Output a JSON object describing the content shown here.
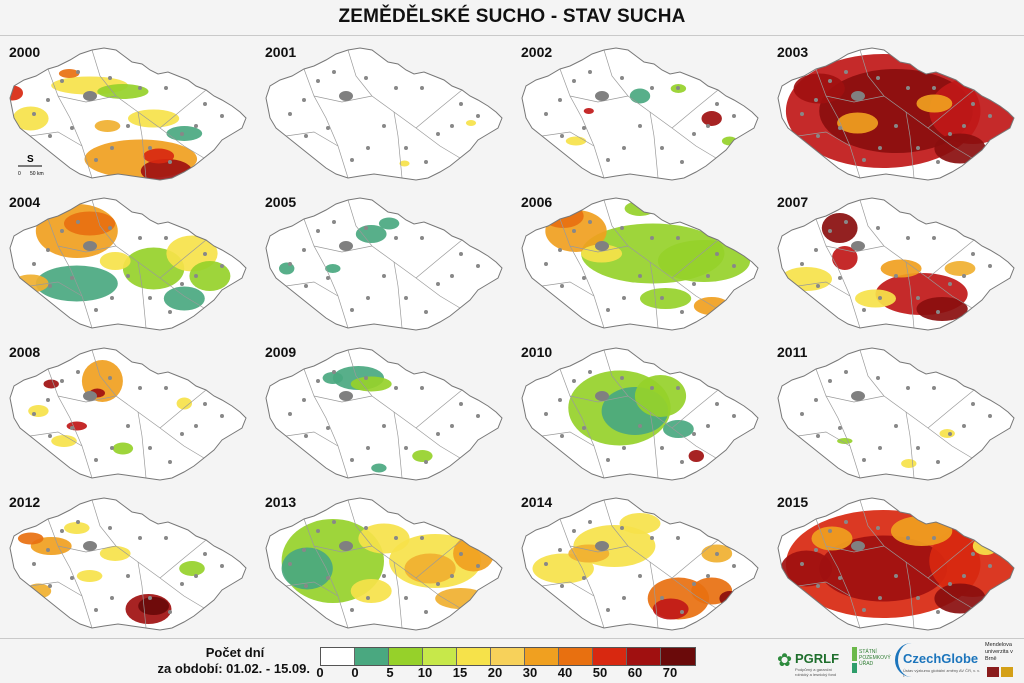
{
  "title": "ZEMĚDĚLSKÉ SUCHO - STAV SUCHA",
  "scale_bar": {
    "north": "S",
    "zero": "0",
    "distance": "50 km"
  },
  "maps": [
    {
      "year": "2000",
      "blobs": [
        [
          0.55,
          0.82,
          0.22,
          0.13,
          "#f0a020"
        ],
        [
          0.65,
          0.9,
          0.1,
          0.08,
          "#a01010"
        ],
        [
          0.62,
          0.8,
          0.06,
          0.05,
          "#d82810"
        ],
        [
          0.35,
          0.33,
          0.15,
          0.06,
          "#f6e24a"
        ],
        [
          0.48,
          0.37,
          0.1,
          0.05,
          "#96d12a"
        ],
        [
          0.6,
          0.55,
          0.1,
          0.06,
          "#f6e24a"
        ],
        [
          0.12,
          0.55,
          0.07,
          0.08,
          "#f6e24a"
        ],
        [
          0.05,
          0.38,
          0.04,
          0.05,
          "#d82810"
        ],
        [
          0.27,
          0.25,
          0.04,
          0.03,
          "#e87010"
        ],
        [
          0.72,
          0.65,
          0.07,
          0.05,
          "#4aa880"
        ],
        [
          0.42,
          0.6,
          0.05,
          0.04,
          "#f0b030"
        ]
      ]
    },
    {
      "year": "2001",
      "blobs": [
        [
          0.58,
          0.85,
          0.02,
          0.02,
          "#f6e24a"
        ],
        [
          0.84,
          0.58,
          0.02,
          0.02,
          "#f6e24a"
        ]
      ]
    },
    {
      "year": "2002",
      "blobs": [
        [
          0.5,
          0.4,
          0.04,
          0.05,
          "#4aa880"
        ],
        [
          0.78,
          0.55,
          0.04,
          0.05,
          "#a01010"
        ],
        [
          0.25,
          0.7,
          0.04,
          0.03,
          "#f6e24a"
        ],
        [
          0.85,
          0.7,
          0.03,
          0.03,
          "#96d12a"
        ],
        [
          0.3,
          0.5,
          0.02,
          0.02,
          "#c01818"
        ],
        [
          0.65,
          0.35,
          0.03,
          0.03,
          "#96d12a"
        ]
      ]
    },
    {
      "year": "2003",
      "blobs": [
        [
          0.45,
          0.5,
          0.38,
          0.38,
          "#c01818"
        ],
        [
          0.5,
          0.5,
          0.3,
          0.28,
          "#8a0e0e"
        ],
        [
          0.8,
          0.5,
          0.17,
          0.22,
          "#c01818"
        ],
        [
          0.35,
          0.58,
          0.08,
          0.07,
          "#f0a020"
        ],
        [
          0.65,
          0.45,
          0.07,
          0.06,
          "#f0a020"
        ],
        [
          0.2,
          0.35,
          0.1,
          0.1,
          "#a01010"
        ],
        [
          0.75,
          0.75,
          0.1,
          0.1,
          "#8a0e0e"
        ]
      ]
    },
    {
      "year": "2004",
      "blobs": [
        [
          0.3,
          0.3,
          0.16,
          0.18,
          "#f0a020"
        ],
        [
          0.35,
          0.25,
          0.1,
          0.08,
          "#e87010"
        ],
        [
          0.3,
          0.65,
          0.16,
          0.12,
          "#4aa880"
        ],
        [
          0.6,
          0.55,
          0.12,
          0.14,
          "#96d12a"
        ],
        [
          0.75,
          0.45,
          0.1,
          0.12,
          "#f6e24a"
        ],
        [
          0.72,
          0.75,
          0.08,
          0.08,
          "#4aa880"
        ],
        [
          0.45,
          0.5,
          0.06,
          0.06,
          "#f6e24a"
        ],
        [
          0.12,
          0.65,
          0.07,
          0.06,
          "#f0b030"
        ],
        [
          0.82,
          0.6,
          0.08,
          0.1,
          "#96d12a"
        ]
      ]
    },
    {
      "year": "2005",
      "blobs": [
        [
          0.45,
          0.32,
          0.06,
          0.06,
          "#4aa880"
        ],
        [
          0.12,
          0.55,
          0.03,
          0.04,
          "#4aa880"
        ],
        [
          0.3,
          0.55,
          0.03,
          0.03,
          "#4aa880"
        ],
        [
          0.52,
          0.25,
          0.04,
          0.04,
          "#4aa880"
        ]
      ]
    },
    {
      "year": "2006",
      "blobs": [
        [
          0.55,
          0.45,
          0.28,
          0.2,
          "#96d12a"
        ],
        [
          0.75,
          0.5,
          0.18,
          0.14,
          "#96d12a"
        ],
        [
          0.25,
          0.3,
          0.12,
          0.14,
          "#f0a020"
        ],
        [
          0.2,
          0.2,
          0.08,
          0.08,
          "#e87010"
        ],
        [
          0.35,
          0.45,
          0.08,
          0.06,
          "#f6e24a"
        ],
        [
          0.78,
          0.8,
          0.07,
          0.06,
          "#f0a020"
        ],
        [
          0.6,
          0.75,
          0.1,
          0.07,
          "#96d12a"
        ],
        [
          0.5,
          0.15,
          0.06,
          0.05,
          "#96d12a"
        ]
      ]
    },
    {
      "year": "2007",
      "blobs": [
        [
          0.6,
          0.72,
          0.18,
          0.14,
          "#c01818"
        ],
        [
          0.68,
          0.82,
          0.1,
          0.08,
          "#8a0e0e"
        ],
        [
          0.28,
          0.28,
          0.07,
          0.1,
          "#8a0e0e"
        ],
        [
          0.3,
          0.48,
          0.05,
          0.08,
          "#c01818"
        ],
        [
          0.52,
          0.55,
          0.08,
          0.06,
          "#f0a020"
        ],
        [
          0.15,
          0.62,
          0.1,
          0.08,
          "#f6e24a"
        ],
        [
          0.75,
          0.55,
          0.06,
          0.05,
          "#f0b030"
        ],
        [
          0.42,
          0.75,
          0.08,
          0.06,
          "#f6e24a"
        ]
      ]
    },
    {
      "year": "2008",
      "blobs": [
        [
          0.4,
          0.3,
          0.08,
          0.14,
          "#f0a020"
        ],
        [
          0.38,
          0.38,
          0.03,
          0.03,
          "#a01010"
        ],
        [
          0.2,
          0.32,
          0.03,
          0.03,
          "#a01010"
        ],
        [
          0.3,
          0.6,
          0.04,
          0.03,
          "#c01818"
        ],
        [
          0.15,
          0.5,
          0.04,
          0.04,
          "#f6e24a"
        ],
        [
          0.25,
          0.7,
          0.05,
          0.04,
          "#f6e24a"
        ],
        [
          0.48,
          0.75,
          0.04,
          0.04,
          "#96d12a"
        ],
        [
          0.72,
          0.45,
          0.03,
          0.04,
          "#f6e24a"
        ]
      ]
    },
    {
      "year": "2009",
      "blobs": [
        [
          0.4,
          0.28,
          0.1,
          0.08,
          "#4aa880"
        ],
        [
          0.45,
          0.32,
          0.08,
          0.05,
          "#96d12a"
        ],
        [
          0.3,
          0.28,
          0.04,
          0.04,
          "#4aa880"
        ],
        [
          0.65,
          0.8,
          0.04,
          0.04,
          "#96d12a"
        ],
        [
          0.48,
          0.88,
          0.03,
          0.03,
          "#4aa880"
        ]
      ]
    },
    {
      "year": "2010",
      "blobs": [
        [
          0.42,
          0.48,
          0.2,
          0.25,
          "#96d12a"
        ],
        [
          0.48,
          0.5,
          0.13,
          0.16,
          "#4aa880"
        ],
        [
          0.58,
          0.4,
          0.1,
          0.14,
          "#96d12a"
        ],
        [
          0.65,
          0.62,
          0.06,
          0.06,
          "#4aa880"
        ],
        [
          0.72,
          0.8,
          0.03,
          0.04,
          "#a01010"
        ]
      ]
    },
    {
      "year": "2011",
      "blobs": [
        [
          0.55,
          0.85,
          0.03,
          0.03,
          "#f6e24a"
        ],
        [
          0.3,
          0.7,
          0.03,
          0.02,
          "#96d12a"
        ],
        [
          0.7,
          0.65,
          0.03,
          0.03,
          "#f6e24a"
        ]
      ]
    },
    {
      "year": "2012",
      "blobs": [
        [
          0.58,
          0.82,
          0.09,
          0.1,
          "#a01010"
        ],
        [
          0.6,
          0.8,
          0.06,
          0.06,
          "#6a0a0a"
        ],
        [
          0.2,
          0.4,
          0.08,
          0.06,
          "#f0a020"
        ],
        [
          0.12,
          0.35,
          0.05,
          0.04,
          "#e87010"
        ],
        [
          0.3,
          0.28,
          0.05,
          0.04,
          "#f6e24a"
        ],
        [
          0.45,
          0.45,
          0.06,
          0.05,
          "#f6e24a"
        ],
        [
          0.75,
          0.55,
          0.05,
          0.05,
          "#96d12a"
        ],
        [
          0.35,
          0.6,
          0.05,
          0.04,
          "#f6e24a"
        ],
        [
          0.15,
          0.7,
          0.05,
          0.05,
          "#f0b030"
        ]
      ]
    },
    {
      "year": "2013",
      "blobs": [
        [
          0.3,
          0.5,
          0.2,
          0.28,
          "#96d12a"
        ],
        [
          0.2,
          0.55,
          0.1,
          0.14,
          "#4aa880"
        ],
        [
          0.7,
          0.5,
          0.18,
          0.18,
          "#f6e24a"
        ],
        [
          0.68,
          0.55,
          0.1,
          0.1,
          "#f0b030"
        ],
        [
          0.85,
          0.45,
          0.08,
          0.12,
          "#f0a020"
        ],
        [
          0.5,
          0.35,
          0.1,
          0.1,
          "#f6e24a"
        ],
        [
          0.45,
          0.7,
          0.08,
          0.08,
          "#f6e24a"
        ],
        [
          0.8,
          0.75,
          0.1,
          0.07,
          "#f0b030"
        ]
      ]
    },
    {
      "year": "2014",
      "blobs": [
        [
          0.65,
          0.75,
          0.12,
          0.14,
          "#e87010"
        ],
        [
          0.62,
          0.82,
          0.07,
          0.07,
          "#c01818"
        ],
        [
          0.78,
          0.7,
          0.08,
          0.09,
          "#e87010"
        ],
        [
          0.4,
          0.4,
          0.16,
          0.14,
          "#f6e24a"
        ],
        [
          0.2,
          0.55,
          0.12,
          0.1,
          "#f6e24a"
        ],
        [
          0.3,
          0.45,
          0.08,
          0.06,
          "#f0b030"
        ],
        [
          0.5,
          0.25,
          0.08,
          0.07,
          "#f6e24a"
        ],
        [
          0.8,
          0.45,
          0.06,
          0.06,
          "#f0b030"
        ],
        [
          0.85,
          0.75,
          0.04,
          0.05,
          "#8a0e0e"
        ]
      ]
    },
    {
      "year": "2015",
      "blobs": [
        [
          0.45,
          0.52,
          0.38,
          0.36,
          "#d82810"
        ],
        [
          0.45,
          0.55,
          0.25,
          0.22,
          "#a01010"
        ],
        [
          0.8,
          0.5,
          0.17,
          0.24,
          "#d82810"
        ],
        [
          0.6,
          0.3,
          0.12,
          0.1,
          "#f0a020"
        ],
        [
          0.25,
          0.35,
          0.08,
          0.08,
          "#f0a020"
        ],
        [
          0.15,
          0.55,
          0.1,
          0.12,
          "#a01010"
        ],
        [
          0.75,
          0.75,
          0.1,
          0.1,
          "#8a0e0e"
        ],
        [
          0.85,
          0.4,
          0.05,
          0.06,
          "#f6e24a"
        ]
      ]
    }
  ],
  "legend": {
    "label_line1": "Počet dní",
    "label_line2": "za období: 01.02. - 15.09.",
    "colors": [
      "#ffffff",
      "#4aa880",
      "#96d12a",
      "#c7e84a",
      "#f6e24a",
      "#f7d15a",
      "#f0a020",
      "#e87010",
      "#d82810",
      "#a01010",
      "#6a0a0a"
    ],
    "ticks": [
      "0",
      "0",
      "5",
      "10",
      "15",
      "20",
      "30",
      "40",
      "50",
      "60",
      "70"
    ]
  },
  "logos": {
    "pgrlf": "PGRLF",
    "pgrlf_sub": "Podpůrný a garanční rolnický a lesnický fond",
    "spu": "STÁTNÍ POZEMKOVÝ ÚŘAD",
    "czechglobe": "CzechGlobe",
    "czechglobe_sub": "Ústav výzkumu globální změny AV ČR, v. v. i.",
    "mendel": "Mendelova univerzita v Brně"
  }
}
